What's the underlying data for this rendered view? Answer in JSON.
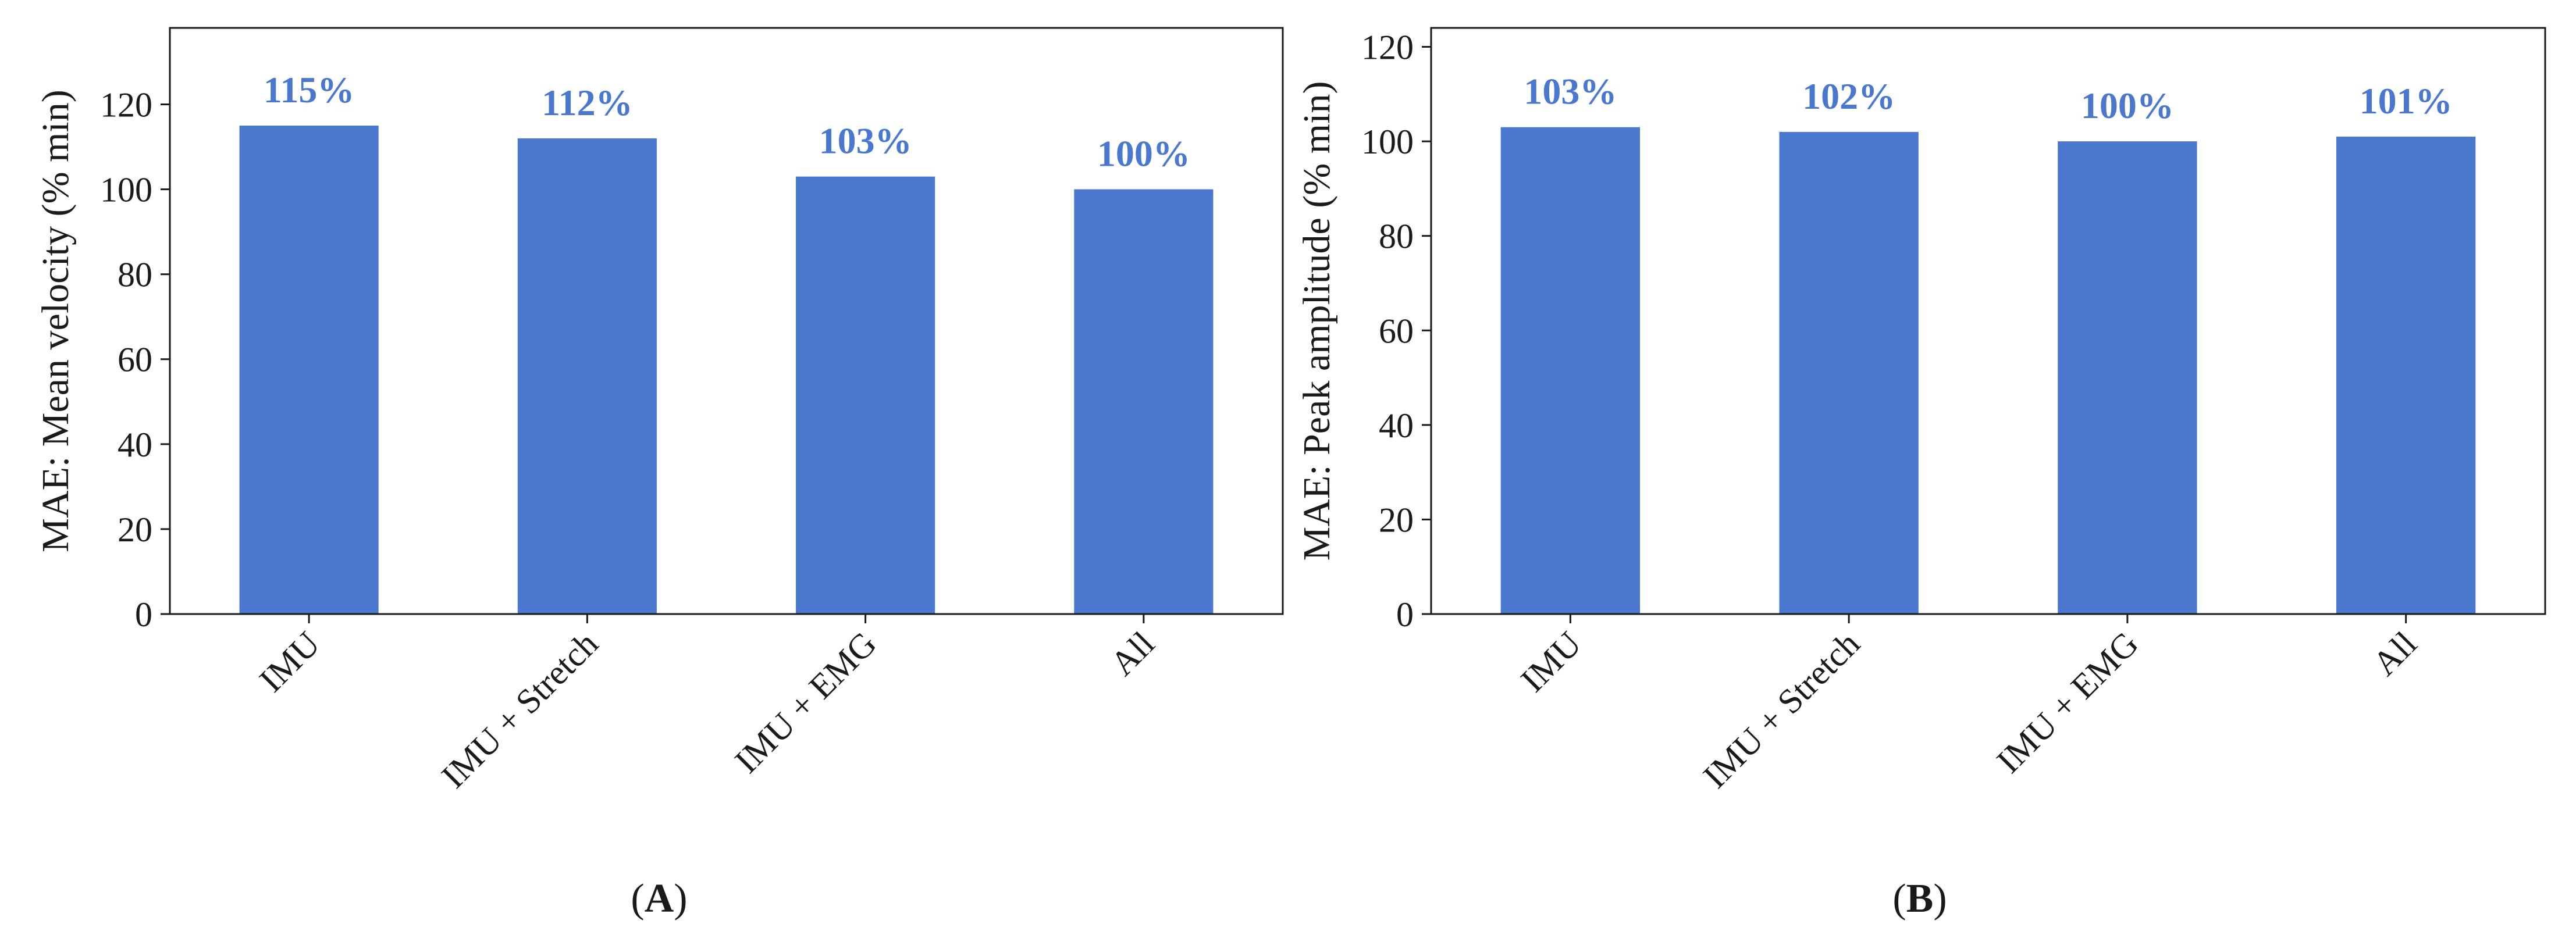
{
  "colors": {
    "bar": "#4a78cf",
    "data_label": "#4a78cf",
    "axis": "#1a1a1a"
  },
  "chart_data": [
    {
      "type": "bar",
      "panel_label": "A",
      "categories": [
        "IMU",
        "IMU + Stretch",
        "IMU + EMG",
        "All"
      ],
      "values": [
        115,
        112,
        103,
        100
      ],
      "data_labels": [
        "115%",
        "112%",
        "103%",
        "100%"
      ],
      "ylabel": "MAE: Mean velocity (% min)",
      "xlabel": "",
      "ylim": [
        0,
        138
      ],
      "yticks": [
        0,
        20,
        40,
        60,
        80,
        100,
        120
      ],
      "grid": false,
      "legend": "none"
    },
    {
      "type": "bar",
      "panel_label": "B",
      "categories": [
        "IMU",
        "IMU + Stretch",
        "IMU + EMG",
        "All"
      ],
      "values": [
        103,
        102,
        100,
        101
      ],
      "data_labels": [
        "103%",
        "102%",
        "100%",
        "101%"
      ],
      "ylabel": "MAE: Peak amplitude (% min)",
      "xlabel": "",
      "ylim": [
        0,
        124
      ],
      "yticks": [
        0,
        20,
        40,
        60,
        80,
        100,
        120
      ],
      "grid": false,
      "legend": "none"
    }
  ]
}
